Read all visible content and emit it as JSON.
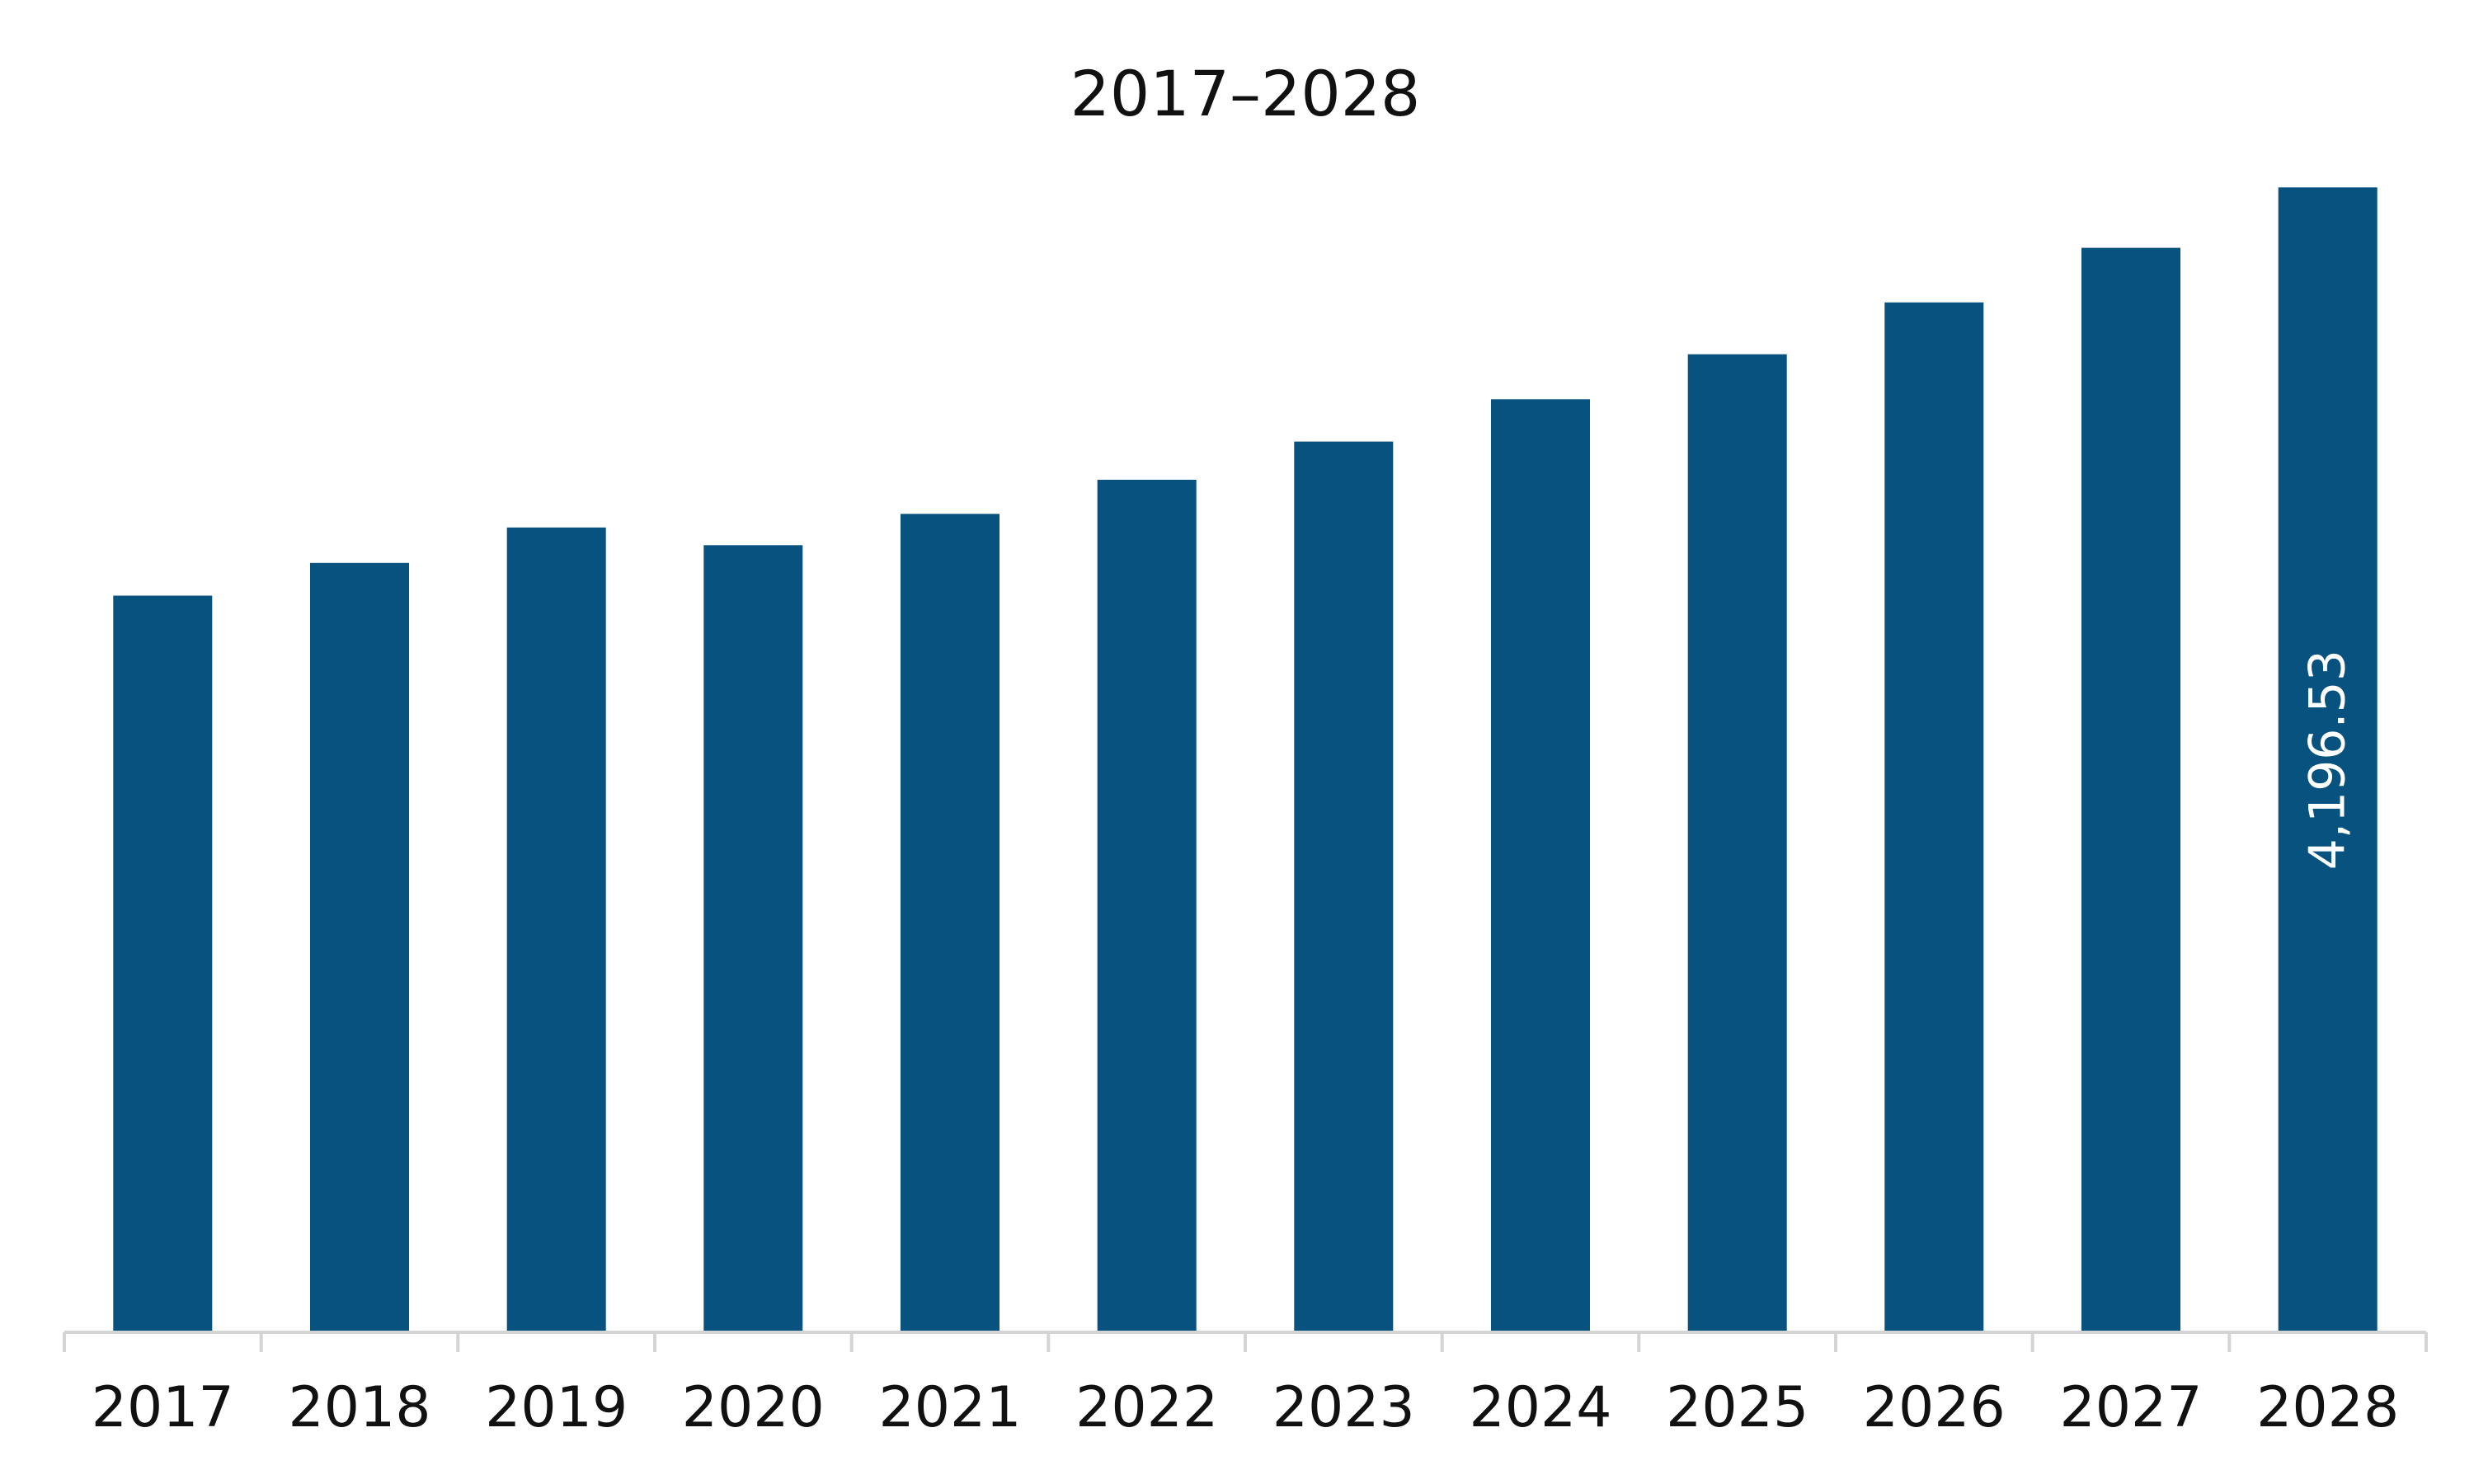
{
  "chart_data": {
    "type": "bar",
    "title": "2017–2028",
    "xlabel": "",
    "ylabel": "",
    "categories": [
      "2017",
      "2018",
      "2019",
      "2020",
      "2021",
      "2022",
      "2023",
      "2024",
      "2025",
      "2026",
      "2027",
      "2028"
    ],
    "values": [
      2700,
      2820,
      2950,
      2885,
      3000,
      3125,
      3265,
      3420,
      3585,
      3775,
      3975,
      4196.53
    ],
    "data_labels": [
      "",
      "",
      "",
      "",
      "",
      "",
      "",
      "",
      "",
      "",
      "",
      "4,196.53"
    ],
    "ylim": [
      0,
      4400
    ],
    "grid": false,
    "legend": "none",
    "colors": {
      "bar": "#08527f",
      "axis": "#d4d4d4",
      "text": "#111111",
      "data_label": "#ffffff"
    }
  }
}
